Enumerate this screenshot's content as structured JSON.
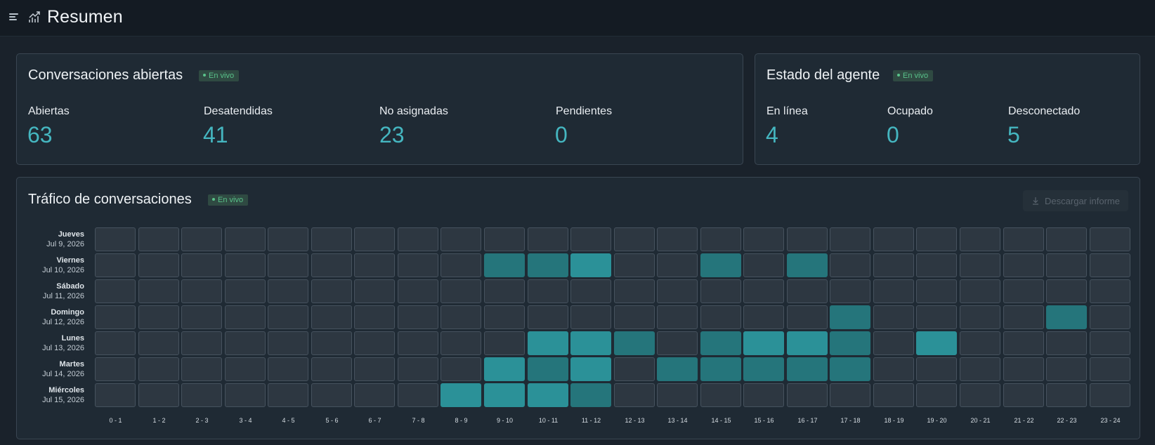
{
  "header": {
    "title": "Resumen",
    "menu_icon": "menu-icon",
    "title_icon": "chart-icon"
  },
  "open_conversations": {
    "title": "Conversaciones abiertas",
    "badge": "En vivo",
    "metrics": [
      {
        "label": "Abiertas",
        "value": "63"
      },
      {
        "label": "Desatendidas",
        "value": "41"
      },
      {
        "label": "No asignadas",
        "value": "23"
      },
      {
        "label": "Pendientes",
        "value": "0"
      }
    ]
  },
  "agent_status": {
    "title": "Estado del agente",
    "badge": "En vivo",
    "metrics": [
      {
        "label": "En línea",
        "value": "4"
      },
      {
        "label": "Ocupado",
        "value": "0"
      },
      {
        "label": "Desconectado",
        "value": "5"
      }
    ]
  },
  "traffic": {
    "title": "Tráfico de conversaciones",
    "badge": "En vivo",
    "download_label": "Descargar informe",
    "rows": [
      {
        "day": "Jueves",
        "date": "Jul 9, 2026"
      },
      {
        "day": "Viernes",
        "date": "Jul 10, 2026"
      },
      {
        "day": "Sábado",
        "date": "Jul 11, 2026"
      },
      {
        "day": "Domingo",
        "date": "Jul 12, 2026"
      },
      {
        "day": "Lunes",
        "date": "Jul 13, 2026"
      },
      {
        "day": "Martes",
        "date": "Jul 14, 2026"
      },
      {
        "day": "Miércoles",
        "date": "Jul 15, 2026"
      }
    ],
    "columns": [
      "0 - 1",
      "1 - 2",
      "2 - 3",
      "3 - 4",
      "4 - 5",
      "5 - 6",
      "6 - 7",
      "7 - 8",
      "8 - 9",
      "9 - 10",
      "10 - 11",
      "11 - 12",
      "12 - 13",
      "13 - 14",
      "14 - 15",
      "15 - 16",
      "16 - 17",
      "17 - 18",
      "18 - 19",
      "19 - 20",
      "20 - 21",
      "21 - 22",
      "22 - 23",
      "23 - 24"
    ],
    "intensity": [
      [
        0,
        0,
        0,
        0,
        0,
        0,
        0,
        0,
        0,
        0,
        0,
        0,
        0,
        0,
        0,
        0,
        0,
        0,
        0,
        0,
        0,
        0,
        0,
        0
      ],
      [
        0,
        0,
        0,
        0,
        0,
        0,
        0,
        0,
        0,
        2,
        2,
        3,
        0,
        0,
        2,
        0,
        2,
        0,
        0,
        0,
        0,
        0,
        0,
        0
      ],
      [
        0,
        0,
        0,
        0,
        0,
        0,
        0,
        0,
        0,
        0,
        0,
        0,
        0,
        0,
        0,
        0,
        0,
        0,
        0,
        0,
        0,
        0,
        0,
        0
      ],
      [
        0,
        0,
        0,
        0,
        0,
        0,
        0,
        0,
        0,
        0,
        0,
        0,
        0,
        0,
        0,
        0,
        0,
        2,
        0,
        0,
        0,
        0,
        2,
        0
      ],
      [
        0,
        0,
        0,
        0,
        0,
        0,
        0,
        0,
        0,
        0,
        3,
        3,
        2,
        0,
        2,
        3,
        3,
        2,
        0,
        3,
        0,
        0,
        0,
        0
      ],
      [
        0,
        0,
        0,
        0,
        0,
        0,
        0,
        0,
        0,
        3,
        2,
        3,
        0,
        2,
        2,
        2,
        2,
        2,
        0,
        0,
        0,
        0,
        0,
        0
      ],
      [
        0,
        0,
        0,
        0,
        0,
        0,
        0,
        0,
        3,
        3,
        3,
        2,
        0,
        0,
        0,
        0,
        0,
        0,
        0,
        0,
        0,
        0,
        0,
        0
      ]
    ],
    "colors": {
      "empty": "#2d3741",
      "medium": "#25757b",
      "high": "#2b9198"
    }
  }
}
